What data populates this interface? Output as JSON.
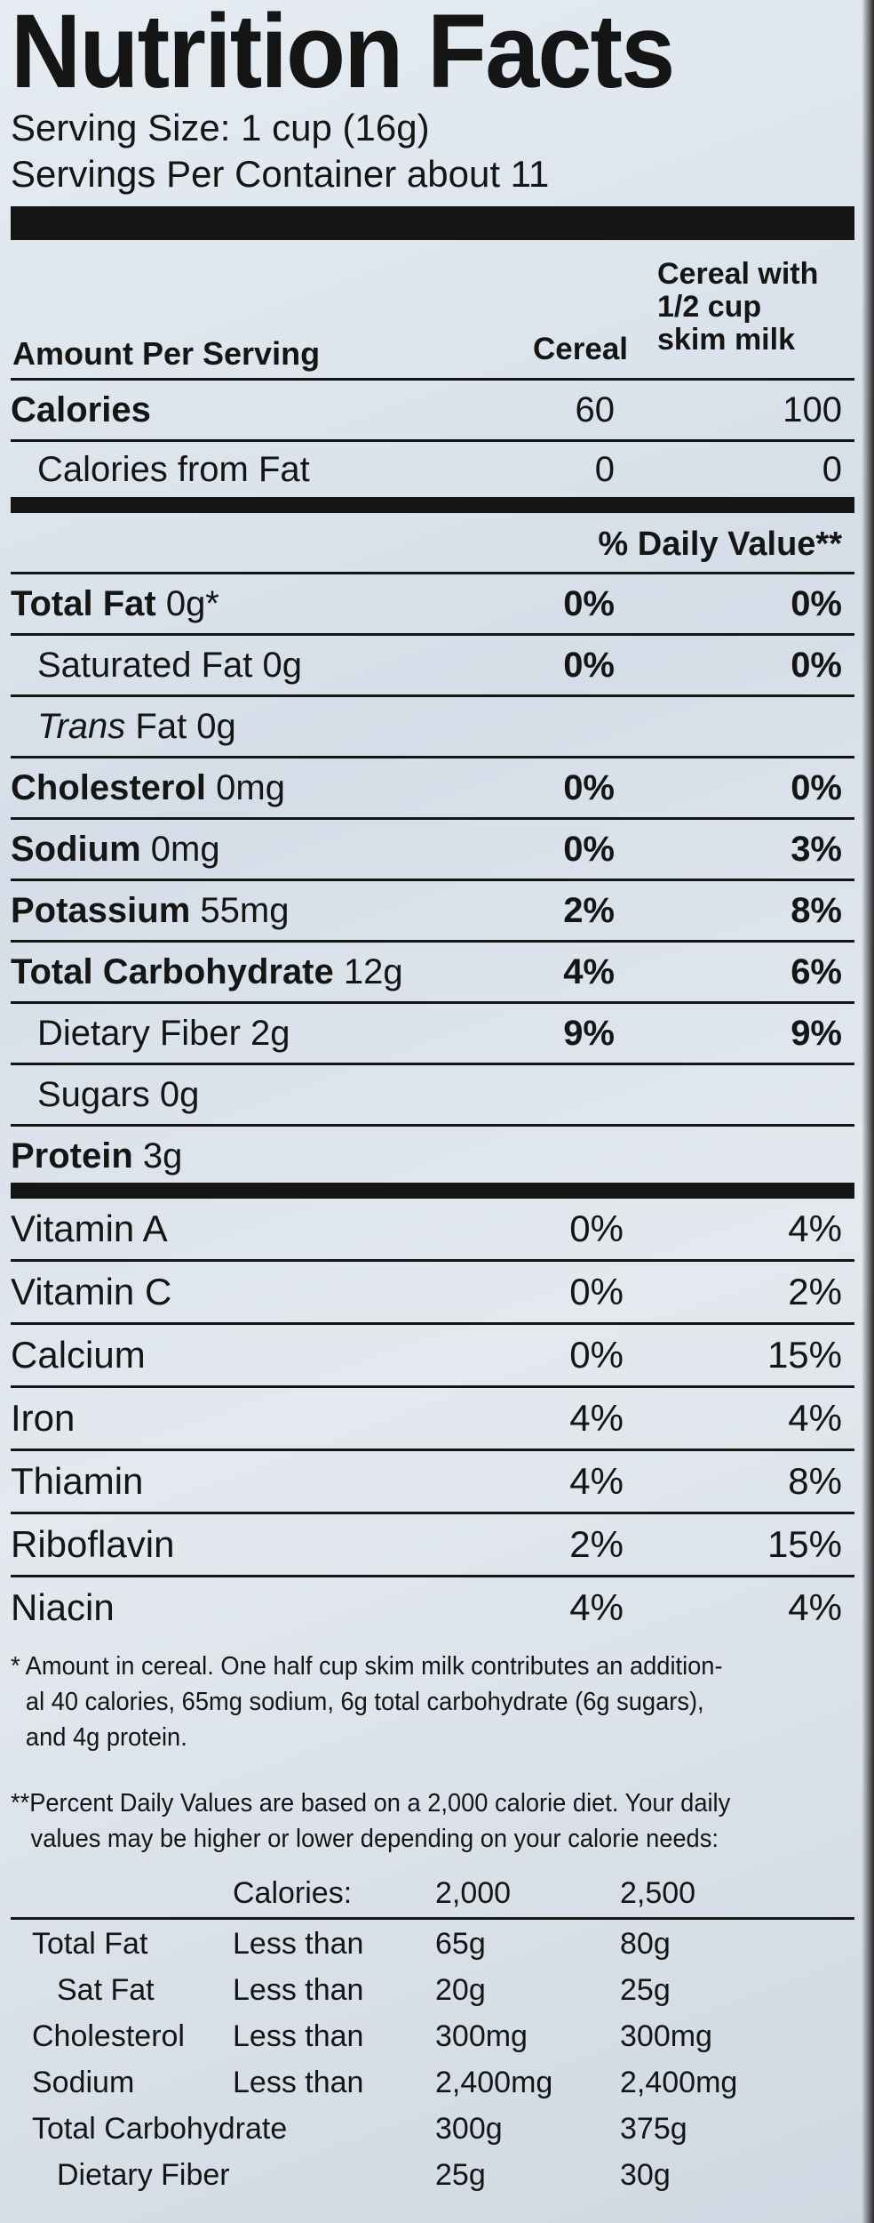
{
  "title": "Nutrition Facts",
  "serving_size": "Serving Size: 1 cup (16g)",
  "servings_per_container": "Servings Per Container about 11",
  "header": {
    "amount_per_serving": "Amount Per Serving",
    "col1": "Cereal",
    "col2_line1": "Cereal with",
    "col2_line2": "1/2 cup",
    "col2_line3": "skim milk"
  },
  "calories": {
    "label": "Calories",
    "cereal": "60",
    "with_milk": "100"
  },
  "calories_from_fat": {
    "label": "Calories from Fat",
    "cereal": "0",
    "with_milk": "0"
  },
  "daily_value_header": "% Daily Value**",
  "nutrients": [
    {
      "bold": "Total Fat",
      "amount": " 0g*",
      "cereal": "0%",
      "with_milk": "0%"
    },
    {
      "bold": "",
      "amount": "Saturated Fat 0g",
      "cereal": "0%",
      "with_milk": "0%"
    },
    {
      "italic": "Trans",
      "amount": " Fat 0g",
      "cereal": "",
      "with_milk": ""
    },
    {
      "bold": "Cholesterol",
      "amount": " 0mg",
      "cereal": "0%",
      "with_milk": "0%"
    },
    {
      "bold": "Sodium",
      "amount": " 0mg",
      "cereal": "0%",
      "with_milk": "3%"
    },
    {
      "bold": "Potassium",
      "amount": " 55mg",
      "cereal": "2%",
      "with_milk": "8%"
    },
    {
      "bold": "Total Carbohydrate",
      "amount": " 12g",
      "cereal": "4%",
      "with_milk": "6%"
    },
    {
      "bold": "",
      "amount": "Dietary Fiber 2g",
      "cereal": "9%",
      "with_milk": "9%"
    },
    {
      "bold": "",
      "amount": "Sugars 0g",
      "cereal": "",
      "with_milk": ""
    },
    {
      "bold": "Protein",
      "amount": " 3g",
      "cereal": "",
      "with_milk": ""
    }
  ],
  "vitamins": [
    {
      "label": "Vitamin A",
      "cereal": "0%",
      "with_milk": "4%"
    },
    {
      "label": "Vitamin C",
      "cereal": "0%",
      "with_milk": "2%"
    },
    {
      "label": "Calcium",
      "cereal": "0%",
      "with_milk": "15%"
    },
    {
      "label": "Iron",
      "cereal": "4%",
      "with_milk": "4%"
    },
    {
      "label": "Thiamin",
      "cereal": "4%",
      "with_milk": "8%"
    },
    {
      "label": "Riboflavin",
      "cereal": "2%",
      "with_milk": "15%"
    },
    {
      "label": "Niacin",
      "cereal": "4%",
      "with_milk": "4%"
    }
  ],
  "footnote1": {
    "line1": "* Amount in cereal. One half cup skim milk contributes an addition-",
    "line2": "al 40 calories, 65mg sodium, 6g total carbohydrate (6g sugars),",
    "line3": "and 4g protein."
  },
  "footnote2": {
    "line1": "**Percent Daily Values are based on a 2,000 calorie diet. Your daily",
    "line2": "values may be higher or lower depending on your calorie needs:"
  },
  "reference": {
    "head": {
      "label": "Calories:",
      "a": "2,000",
      "b": "2,500"
    },
    "rows": [
      {
        "name": "Total Fat",
        "cond": "Less than",
        "a": "65g",
        "b": "80g"
      },
      {
        "name": "Sat Fat",
        "cond": "Less than",
        "a": "20g",
        "b": "25g"
      },
      {
        "name": "Cholesterol",
        "cond": "Less than",
        "a": "300mg",
        "b": "300mg"
      },
      {
        "name": "Sodium",
        "cond": "Less than",
        "a": "2,400mg",
        "b": "2,400mg"
      },
      {
        "name": "Total Carbohydrate",
        "cond": "",
        "a": "300g",
        "b": "375g"
      },
      {
        "name": "Dietary Fiber",
        "cond": "",
        "a": "25g",
        "b": "30g"
      }
    ]
  }
}
